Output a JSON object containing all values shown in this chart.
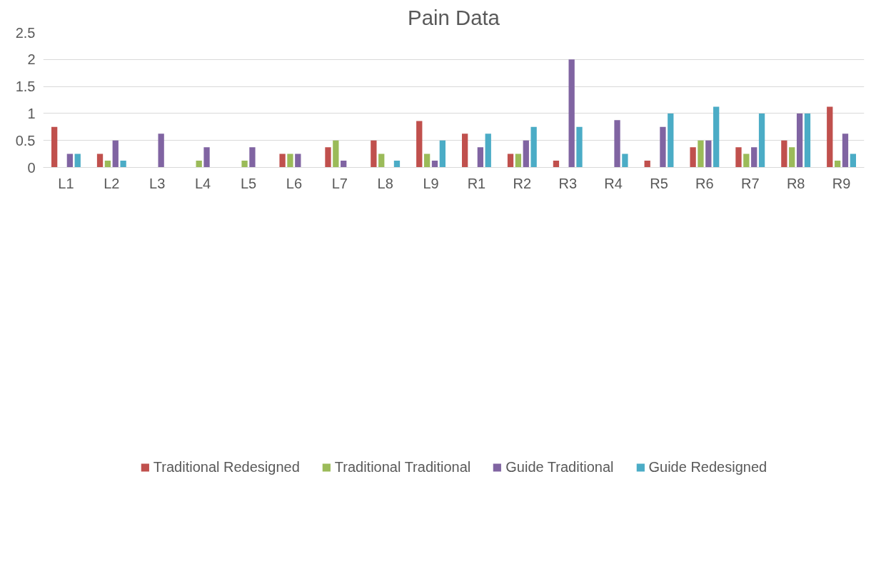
{
  "chart_data": {
    "type": "bar",
    "title": "Pain Data",
    "categories": [
      "L1",
      "L2",
      "L3",
      "L4",
      "L5",
      "L6",
      "L7",
      "L8",
      "L9",
      "R1",
      "R2",
      "R3",
      "R4",
      "R5",
      "R6",
      "R7",
      "R8",
      "R9"
    ],
    "series": [
      {
        "name": "Traditional Redesigned",
        "color": "#c0504d",
        "values": [
          0.75,
          0.25,
          0,
          0,
          0,
          0.25,
          0.375,
          0.5,
          0.86,
          0.625,
          0.25,
          0.125,
          0,
          0.125,
          0.375,
          0.375,
          0.5,
          1.125
        ]
      },
      {
        "name": "Traditional Traditional",
        "color": "#9bbb59",
        "values": [
          0,
          0.125,
          0,
          0.125,
          0.125,
          0.25,
          0.5,
          0.25,
          0.25,
          0,
          0.25,
          0,
          0,
          0,
          0.5,
          0.25,
          0.375,
          0.125
        ]
      },
      {
        "name": "Guide Traditional",
        "color": "#8064a2",
        "values": [
          0.25,
          0.5,
          0.625,
          0.375,
          0.375,
          0.25,
          0.125,
          0,
          0.125,
          0.375,
          0.5,
          2,
          0.875,
          0.75,
          0.5,
          0.375,
          1,
          0.625
        ]
      },
      {
        "name": "Guide Redesigned",
        "color": "#4bacc6",
        "values": [
          0.25,
          0.125,
          0,
          0,
          0,
          0,
          0,
          0.125,
          0.5,
          0.625,
          0.75,
          0.75,
          0.25,
          1,
          1.125,
          1,
          1,
          0.25
        ]
      }
    ],
    "ylim": [
      0,
      2.5
    ],
    "yticks": [
      0,
      0.5,
      1,
      1.5,
      2,
      2.5
    ],
    "grid": "y",
    "legend": "bottom"
  }
}
